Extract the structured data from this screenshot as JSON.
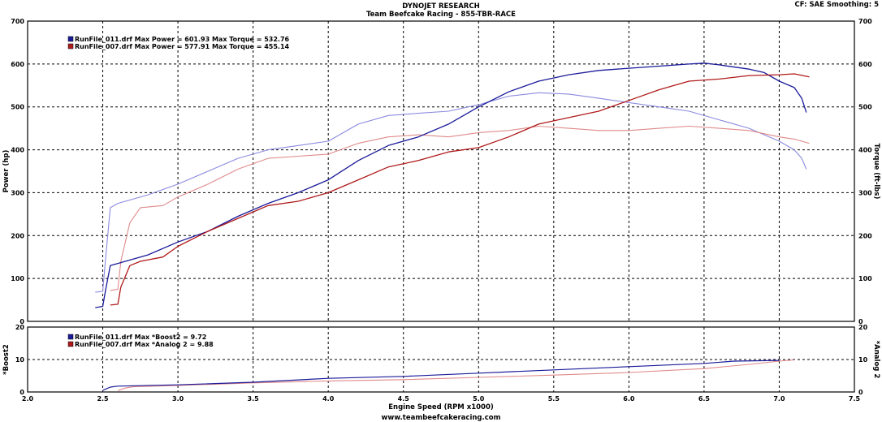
{
  "header": {
    "title": "DYNOJET RESEARCH",
    "subtitle": "Team Beefcake Racing - 855-TBR-RACE",
    "settings": "CF: SAE  Smoothing: 5"
  },
  "footer": {
    "url": "www.teambeefcakeracing.com"
  },
  "colors": {
    "run011": "#1a1a9a",
    "run011_light": "#8a8ae0",
    "run007": "#b01a1a",
    "run007_light": "#e08a8a",
    "grid": "#000000"
  },
  "chart_data": [
    {
      "type": "line",
      "xlabel": "Engine Speed (RPM x1000)",
      "ylabel": "Power (hp)",
      "y2label": "Torque (ft-lbs)",
      "xlim": [
        2.0,
        7.5
      ],
      "ylim": [
        0,
        700
      ],
      "y2lim": [
        0,
        700
      ],
      "xticks": [
        "2.0",
        "2.5",
        "3.0",
        "3.5",
        "4.0",
        "4.5",
        "5.0",
        "5.5",
        "6.0",
        "6.5",
        "7.0",
        "7.5"
      ],
      "yticks": [
        "0",
        "100",
        "200",
        "300",
        "400",
        "500",
        "600",
        "700"
      ],
      "grid": true,
      "legend": [
        "RunFile_011.drf Max Power = 601.93      Max Torque = 532.76",
        "RunFile_007.drf Max Power = 577.91      Max Torque = 455.14"
      ],
      "series": [
        {
          "name": "RunFile_011.drf Power",
          "x": [
            2.45,
            2.5,
            2.52,
            2.55,
            2.6,
            2.8,
            3.0,
            3.2,
            3.4,
            3.6,
            3.8,
            4.0,
            4.2,
            4.4,
            4.6,
            4.8,
            5.0,
            5.2,
            5.4,
            5.6,
            5.8,
            6.0,
            6.2,
            6.4,
            6.5,
            6.6,
            6.8,
            6.9,
            7.0,
            7.1,
            7.15,
            7.18
          ],
          "y": [
            32,
            35,
            75,
            130,
            135,
            155,
            185,
            210,
            245,
            275,
            300,
            330,
            375,
            410,
            430,
            460,
            500,
            535,
            560,
            575,
            585,
            590,
            595,
            600,
            602,
            598,
            588,
            580,
            560,
            545,
            520,
            487
          ]
        },
        {
          "name": "RunFile_011.drf Torque",
          "x": [
            2.45,
            2.5,
            2.52,
            2.55,
            2.6,
            2.8,
            3.0,
            3.2,
            3.4,
            3.6,
            3.8,
            4.0,
            4.2,
            4.4,
            4.6,
            4.8,
            5.0,
            5.2,
            5.4,
            5.6,
            5.8,
            6.0,
            6.2,
            6.4,
            6.6,
            6.8,
            7.0,
            7.1,
            7.15,
            7.18
          ],
          "y": [
            68,
            70,
            150,
            265,
            275,
            295,
            320,
            350,
            380,
            400,
            410,
            420,
            460,
            480,
            485,
            490,
            505,
            525,
            533,
            530,
            520,
            510,
            500,
            490,
            470,
            450,
            420,
            400,
            380,
            355
          ]
        },
        {
          "name": "RunFile_007.drf Power",
          "x": [
            2.55,
            2.6,
            2.62,
            2.68,
            2.75,
            2.9,
            3.0,
            3.2,
            3.4,
            3.6,
            3.8,
            4.0,
            4.2,
            4.4,
            4.6,
            4.8,
            5.0,
            5.2,
            5.4,
            5.6,
            5.8,
            6.0,
            6.2,
            6.4,
            6.6,
            6.8,
            7.0,
            7.1,
            7.2
          ],
          "y": [
            38,
            40,
            80,
            130,
            140,
            150,
            175,
            210,
            240,
            270,
            280,
            300,
            330,
            360,
            375,
            395,
            405,
            430,
            460,
            475,
            490,
            515,
            540,
            560,
            565,
            573,
            575,
            577,
            570
          ]
        },
        {
          "name": "RunFile_007.drf Torque",
          "x": [
            2.55,
            2.6,
            2.62,
            2.68,
            2.75,
            2.9,
            3.0,
            3.2,
            3.4,
            3.6,
            3.8,
            4.0,
            4.2,
            4.4,
            4.6,
            4.8,
            5.0,
            5.2,
            5.4,
            5.6,
            5.8,
            6.0,
            6.2,
            6.4,
            6.6,
            6.8,
            7.0,
            7.1,
            7.2
          ],
          "y": [
            72,
            75,
            140,
            230,
            265,
            270,
            290,
            320,
            355,
            380,
            385,
            390,
            415,
            430,
            435,
            430,
            440,
            445,
            455,
            450,
            445,
            445,
            450,
            455,
            450,
            445,
            430,
            425,
            415
          ]
        }
      ]
    },
    {
      "type": "line",
      "xlabel": "Engine Speed (RPM x1000)",
      "ylabel": "*Boost2",
      "y2label": "*Analog 2",
      "xlim": [
        2.0,
        7.5
      ],
      "ylim": [
        0,
        20
      ],
      "y2lim": [
        0,
        20
      ],
      "yticks": [
        "0",
        "10",
        "20"
      ],
      "grid": true,
      "legend": [
        "RunFile_011.drf Max *Boost2 = 9.72",
        "RunFile_007.drf Max *Analog 2 = 9.88"
      ],
      "series": [
        {
          "name": "RunFile_011.drf *Boost2",
          "x": [
            2.5,
            2.55,
            2.6,
            3.0,
            3.5,
            4.0,
            4.5,
            5.0,
            5.5,
            6.0,
            6.5,
            6.7,
            7.0
          ],
          "y": [
            0.5,
            1.5,
            1.8,
            2.2,
            3.0,
            4.2,
            4.8,
            5.8,
            6.8,
            7.8,
            8.8,
            9.5,
            9.72
          ]
        },
        {
          "name": "RunFile_007.drf *Analog 2",
          "x": [
            2.6,
            2.65,
            2.7,
            3.0,
            3.5,
            4.0,
            4.5,
            5.0,
            5.5,
            6.0,
            6.5,
            6.8,
            7.0,
            7.1
          ],
          "y": [
            0.4,
            1.2,
            1.6,
            2.0,
            2.8,
            3.4,
            3.8,
            4.5,
            5.2,
            6.0,
            7.2,
            8.5,
            9.5,
            9.88
          ]
        }
      ]
    }
  ]
}
